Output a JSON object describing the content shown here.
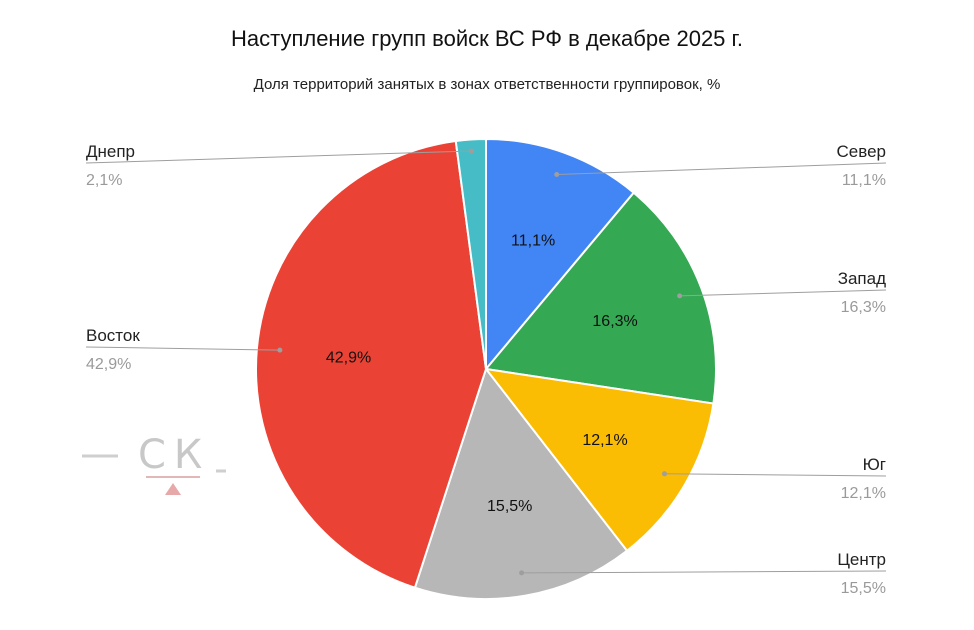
{
  "title": "Наступление групп войск ВС РФ в декабре 2025 г.",
  "subtitle": "Доля территорий занятых в зонах ответственности группировок, %",
  "watermark": "СК",
  "chart_data": {
    "type": "pie",
    "title": "Наступление групп войск ВС РФ в декабре 2025 г.",
    "subtitle": "Доля территорий занятых в зонах ответственности группировок, %",
    "unit": "%",
    "slices": [
      {
        "name": "Север",
        "value": 11.1,
        "label": "11,1%",
        "color": "#4285f4"
      },
      {
        "name": "Запад",
        "value": 16.3,
        "label": "16,3%",
        "color": "#34a853"
      },
      {
        "name": "Юг",
        "value": 12.1,
        "label": "12,1%",
        "color": "#fbbc04"
      },
      {
        "name": "Центр",
        "value": 15.5,
        "label": "15,5%",
        "color": "#b7b7b7"
      },
      {
        "name": "Восток",
        "value": 42.9,
        "label": "42,9%",
        "color": "#ea4335"
      },
      {
        "name": "Днепр",
        "value": 2.1,
        "label": "2,1%",
        "color": "#46bdc6"
      }
    ]
  }
}
